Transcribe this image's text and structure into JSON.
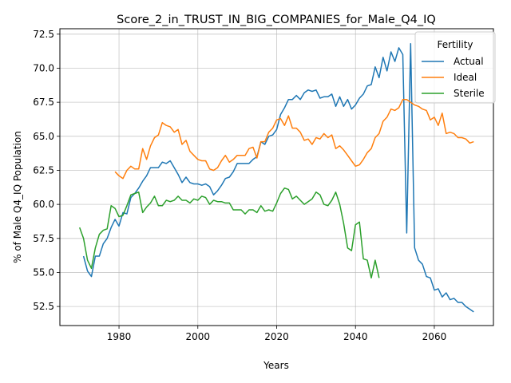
{
  "chart_data": {
    "type": "line",
    "title": "Score_2_in_TRUST_IN_BIG_COMPANIES_for_Male_Q4_IQ",
    "xlabel": "Years",
    "ylabel": "% of Male Q4_IQ Population",
    "xlim": [
      1965,
      2075
    ],
    "ylim": [
      51.1,
      72.9
    ],
    "xticks": [
      1980,
      2000,
      2020,
      2040,
      2060
    ],
    "yticks": [
      52.5,
      55.0,
      57.5,
      60.0,
      62.5,
      65.0,
      67.5,
      70.0,
      72.5
    ],
    "ytick_labels": [
      "52.5",
      "55.0",
      "57.5",
      "60.0",
      "62.5",
      "65.0",
      "67.5",
      "70.0",
      "72.5"
    ],
    "grid": true,
    "legend": {
      "title": "Fertility",
      "placement": "top-right"
    },
    "series": [
      {
        "name": "Actual",
        "color": "#1f77b4",
        "x": [
          1971,
          1972,
          1973,
          1974,
          1975,
          1976,
          1977,
          1978,
          1979,
          1980,
          1981,
          1982,
          1983,
          1984,
          1985,
          1986,
          1987,
          1988,
          1989,
          1990,
          1991,
          1992,
          1993,
          1994,
          1995,
          1996,
          1997,
          1998,
          1999,
          2000,
          2001,
          2002,
          2003,
          2004,
          2005,
          2006,
          2007,
          2008,
          2009,
          2010,
          2011,
          2012,
          2013,
          2014,
          2015,
          2016,
          2017,
          2018,
          2019,
          2020,
          2021,
          2022,
          2023,
          2024,
          2025,
          2026,
          2027,
          2028,
          2029,
          2030,
          2031,
          2032,
          2033,
          2034,
          2035,
          2036,
          2037,
          2038,
          2039,
          2040,
          2041,
          2042,
          2043,
          2044,
          2045,
          2046,
          2047,
          2048,
          2049,
          2050,
          2051,
          2052,
          2053,
          2054,
          2055,
          2056,
          2057,
          2058,
          2059,
          2060,
          2061,
          2062,
          2063,
          2064,
          2065,
          2066,
          2067,
          2068,
          2069,
          2070
        ],
        "values": [
          56.2,
          55.1,
          54.7,
          56.2,
          56.2,
          57.1,
          57.5,
          58.3,
          58.9,
          58.4,
          59.4,
          59.3,
          60.5,
          60.8,
          61.2,
          61.7,
          62.1,
          62.7,
          62.7,
          62.7,
          63.1,
          63.0,
          63.2,
          62.7,
          62.2,
          61.6,
          62.0,
          61.6,
          61.5,
          61.5,
          61.4,
          61.5,
          61.3,
          60.7,
          61.0,
          61.4,
          61.9,
          62.0,
          62.4,
          63.0,
          63.0,
          63.0,
          63.0,
          63.3,
          63.5,
          64.6,
          64.4,
          65.0,
          65.1,
          65.5,
          66.6,
          67.1,
          67.7,
          67.7,
          68.0,
          67.7,
          68.2,
          68.4,
          68.3,
          68.4,
          67.8,
          67.9,
          67.9,
          68.1,
          67.2,
          67.9,
          67.2,
          67.7,
          67.0,
          67.3,
          67.8,
          68.1,
          68.7,
          68.8,
          70.1,
          69.3,
          70.8,
          69.8,
          71.2,
          70.5,
          71.5,
          71.0,
          57.9,
          71.8,
          56.8,
          55.9,
          55.6,
          54.7,
          54.6,
          53.7,
          53.8,
          53.2,
          53.5,
          53.0,
          53.1,
          52.8,
          52.8,
          52.5,
          52.3,
          52.1
        ]
      },
      {
        "name": "Ideal",
        "color": "#ff7f0e",
        "x": [
          1979,
          1980,
          1981,
          1982,
          1983,
          1984,
          1985,
          1986,
          1987,
          1988,
          1989,
          1990,
          1991,
          1992,
          1993,
          1994,
          1995,
          1996,
          1997,
          1998,
          1999,
          2000,
          2001,
          2002,
          2003,
          2004,
          2005,
          2006,
          2007,
          2008,
          2009,
          2010,
          2011,
          2012,
          2013,
          2014,
          2015,
          2016,
          2017,
          2018,
          2019,
          2020,
          2021,
          2022,
          2023,
          2024,
          2025,
          2026,
          2027,
          2028,
          2029,
          2030,
          2031,
          2032,
          2033,
          2034,
          2035,
          2036,
          2037,
          2038,
          2039,
          2040,
          2041,
          2042,
          2043,
          2044,
          2045,
          2046,
          2047,
          2048,
          2049,
          2050,
          2051,
          2052,
          2053,
          2054,
          2055,
          2056,
          2057,
          2058,
          2059,
          2060,
          2061,
          2062,
          2063,
          2064,
          2065,
          2066,
          2067,
          2068,
          2069,
          2070
        ],
        "values": [
          62.4,
          62.1,
          61.9,
          62.5,
          62.8,
          62.6,
          62.6,
          64.1,
          63.3,
          64.3,
          64.9,
          65.1,
          66.0,
          65.8,
          65.7,
          65.3,
          65.5,
          64.4,
          64.7,
          63.9,
          63.6,
          63.3,
          63.2,
          63.2,
          62.6,
          62.5,
          62.7,
          63.2,
          63.6,
          63.1,
          63.3,
          63.6,
          63.6,
          63.6,
          64.1,
          64.2,
          63.4,
          64.6,
          64.6,
          65.3,
          65.6,
          66.2,
          66.3,
          65.8,
          66.5,
          65.6,
          65.6,
          65.3,
          64.7,
          64.8,
          64.4,
          64.9,
          64.8,
          65.2,
          64.9,
          65.1,
          64.1,
          64.3,
          64.0,
          63.6,
          63.2,
          62.8,
          62.9,
          63.3,
          63.8,
          64.1,
          64.9,
          65.2,
          66.1,
          66.4,
          67.0,
          66.9,
          67.1,
          67.7,
          67.7,
          67.5,
          67.3,
          67.2,
          67.0,
          66.9,
          66.2,
          66.4,
          65.8,
          66.7,
          65.2,
          65.3,
          65.2,
          64.9,
          64.9,
          64.8,
          64.5,
          64.6
        ]
      },
      {
        "name": "Sterile",
        "color": "#2ca02c",
        "x": [
          1970,
          1971,
          1972,
          1973,
          1974,
          1975,
          1976,
          1977,
          1978,
          1979,
          1980,
          1981,
          1982,
          1983,
          1984,
          1985,
          1986,
          1987,
          1988,
          1989,
          1990,
          1991,
          1992,
          1993,
          1994,
          1995,
          1996,
          1997,
          1998,
          1999,
          2000,
          2001,
          2002,
          2003,
          2004,
          2005,
          2006,
          2007,
          2008,
          2009,
          2010,
          2011,
          2012,
          2013,
          2014,
          2015,
          2016,
          2017,
          2018,
          2019,
          2020,
          2021,
          2022,
          2023,
          2024,
          2025,
          2026,
          2027,
          2028,
          2029,
          2030,
          2031,
          2032,
          2033,
          2034,
          2035,
          2036,
          2037,
          2038,
          2039,
          2040,
          2041,
          2042,
          2043,
          2044,
          2045,
          2046
        ],
        "values": [
          58.3,
          57.5,
          55.9,
          55.3,
          56.8,
          57.8,
          58.1,
          58.2,
          59.9,
          59.7,
          59.1,
          59.2,
          59.9,
          60.7,
          60.8,
          60.9,
          59.4,
          59.8,
          60.1,
          60.6,
          59.9,
          59.9,
          60.3,
          60.2,
          60.3,
          60.6,
          60.3,
          60.3,
          60.1,
          60.4,
          60.3,
          60.6,
          60.5,
          60.0,
          60.3,
          60.2,
          60.2,
          60.1,
          60.1,
          59.6,
          59.6,
          59.6,
          59.3,
          59.6,
          59.6,
          59.4,
          59.9,
          59.5,
          59.6,
          59.5,
          60.1,
          60.8,
          61.2,
          61.1,
          60.4,
          60.6,
          60.3,
          60.0,
          60.2,
          60.4,
          60.9,
          60.7,
          60.0,
          59.9,
          60.3,
          60.9,
          60.0,
          58.6,
          56.8,
          56.6,
          58.5,
          58.7,
          56.0,
          55.9,
          54.6,
          55.9,
          54.6
        ]
      }
    ]
  }
}
